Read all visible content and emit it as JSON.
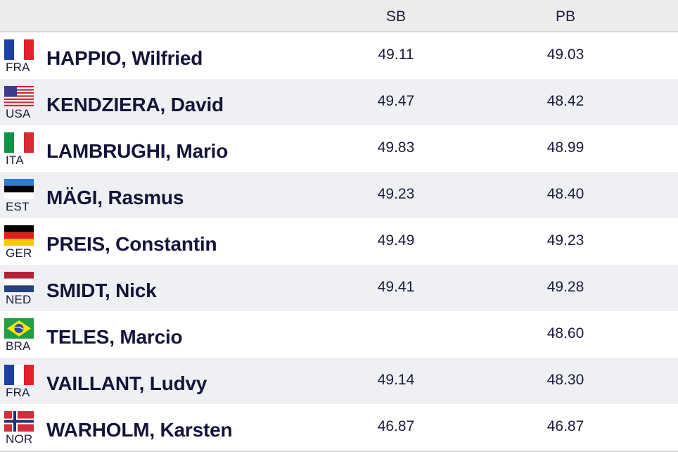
{
  "header": {
    "sb_label": "SB",
    "pb_label": "PB"
  },
  "athletes": [
    {
      "flag_icon": "france-flag-icon",
      "country": "FRA",
      "name": "HAPPIO, Wilfried",
      "sb": "49.11",
      "pb": "49.03"
    },
    {
      "flag_icon": "usa-flag-icon",
      "country": "USA",
      "name": "KENDZIERA, David",
      "sb": "49.47",
      "pb": "48.42"
    },
    {
      "flag_icon": "italy-flag-icon",
      "country": "ITA",
      "name": "LAMBRUGHI, Mario",
      "sb": "49.83",
      "pb": "48.99"
    },
    {
      "flag_icon": "estonia-flag-icon",
      "country": "EST",
      "name": "MÄGI, Rasmus",
      "sb": "49.23",
      "pb": "48.40"
    },
    {
      "flag_icon": "germany-flag-icon",
      "country": "GER",
      "name": "PREIS, Constantin",
      "sb": "49.49",
      "pb": "49.23"
    },
    {
      "flag_icon": "netherlands-flag-icon",
      "country": "NED",
      "name": "SMIDT, Nick",
      "sb": "49.41",
      "pb": "49.28"
    },
    {
      "flag_icon": "brazil-flag-icon",
      "country": "BRA",
      "name": "TELES, Marcio",
      "sb": "",
      "pb": "48.60"
    },
    {
      "flag_icon": "france-flag-icon",
      "country": "FRA",
      "name": "VAILLANT, Ludvy",
      "sb": "49.14",
      "pb": "48.30"
    },
    {
      "flag_icon": "norway-flag-icon",
      "country": "NOR",
      "name": "WARHOLM, Karsten",
      "sb": "46.87",
      "pb": "46.87"
    }
  ]
}
